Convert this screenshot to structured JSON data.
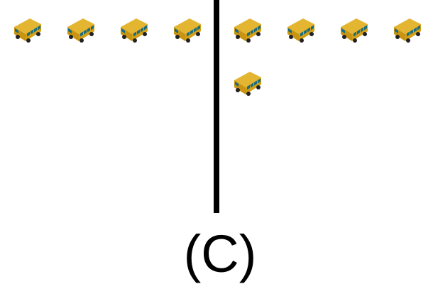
{
  "caption": "(C)",
  "colors": {
    "background": "#ffffff",
    "divider": "#000000",
    "bus_body": "#d4a017",
    "bus_roof": "#e3b531",
    "bus_window": "#1a6d7d",
    "bus_tire": "#222222"
  },
  "icon": "school-bus-icon",
  "left_group": {
    "bus_count": 4
  },
  "right_group": {
    "bus_count": 5
  }
}
